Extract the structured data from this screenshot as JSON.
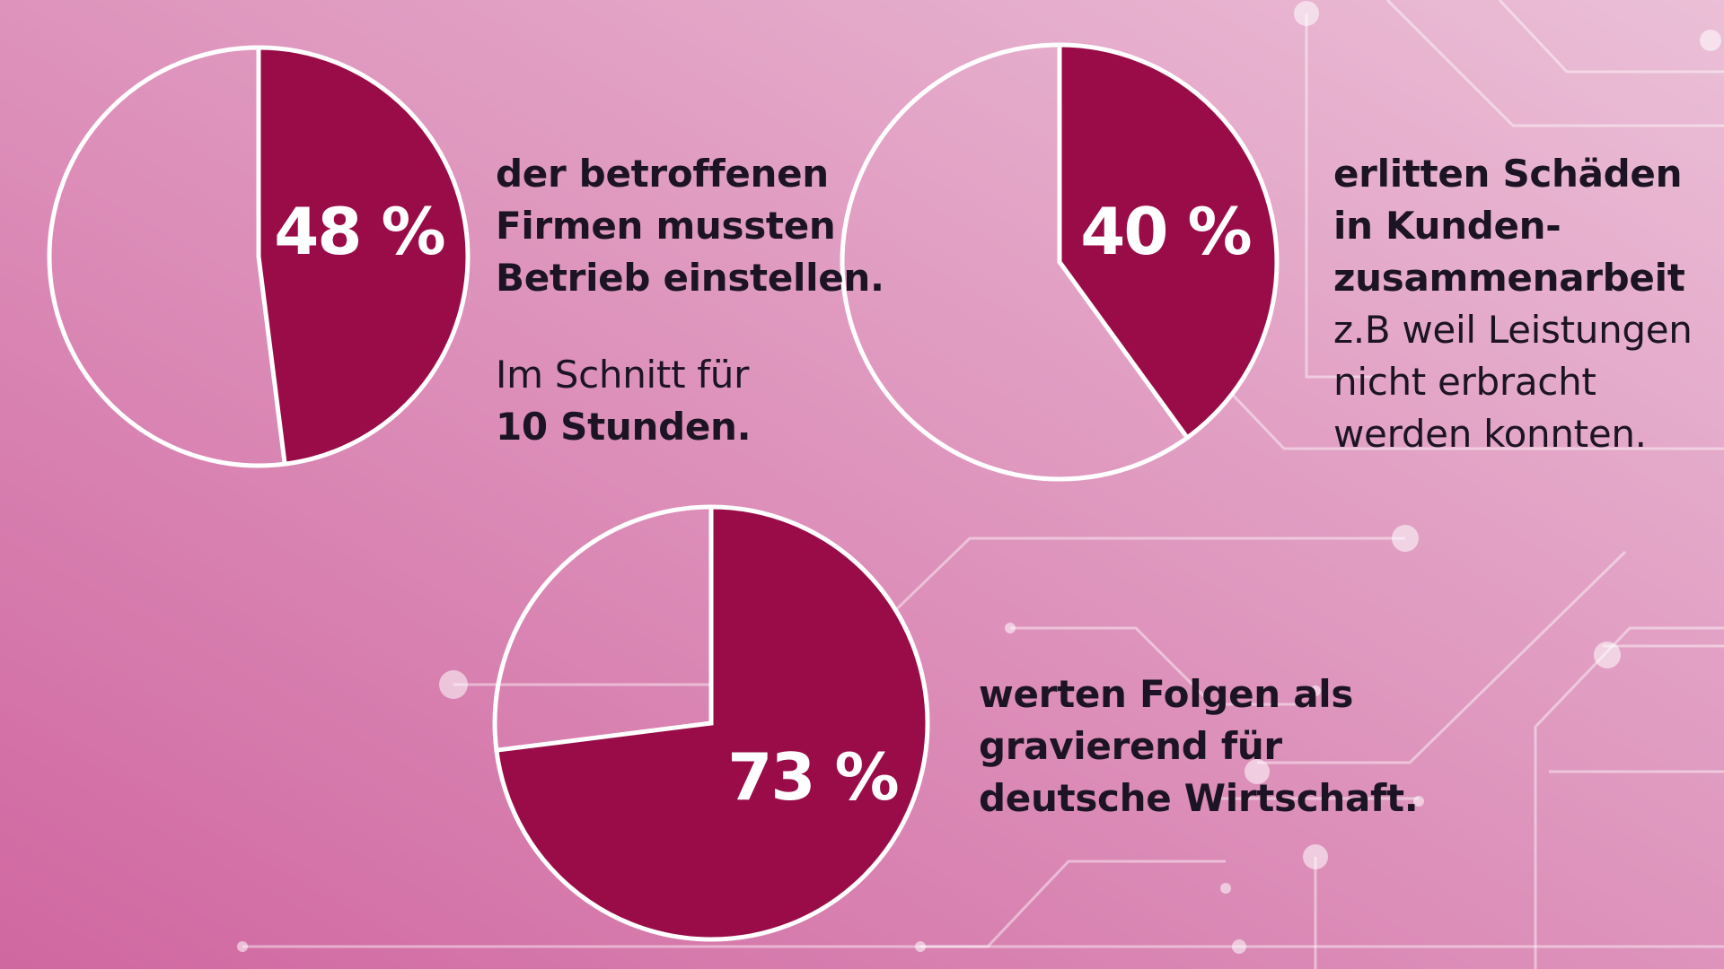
{
  "colors": {
    "background_from": "#d067a0",
    "background_to": "#ebbfd7",
    "slice": "#990c48",
    "slice_rest": "none",
    "outline": "#ffffff",
    "label": "#ffffff",
    "text": "#1c1424",
    "circuit": "#ffffff"
  },
  "chart_data": [
    {
      "type": "pie",
      "values": [
        48,
        52
      ],
      "label": "48 %",
      "caption": [
        "der betroffenen",
        "Firmen mussten",
        "Betrieb einstellen."
      ],
      "note_prefix": "Im Schnitt für",
      "note_bold": "10 Stunden."
    },
    {
      "type": "pie",
      "values": [
        40,
        60
      ],
      "label": "40 %",
      "caption": [
        "erlitten Schäden",
        "in Kunden-",
        "zusammenarbeit"
      ],
      "note": [
        "z.B weil Leistungen",
        "nicht erbracht",
        "werden konnten."
      ]
    },
    {
      "type": "pie",
      "values": [
        73,
        27
      ],
      "label": "73 %",
      "caption": [
        "werten Folgen als",
        "gravierend für",
        "deutsche Wirtschaft."
      ]
    }
  ]
}
